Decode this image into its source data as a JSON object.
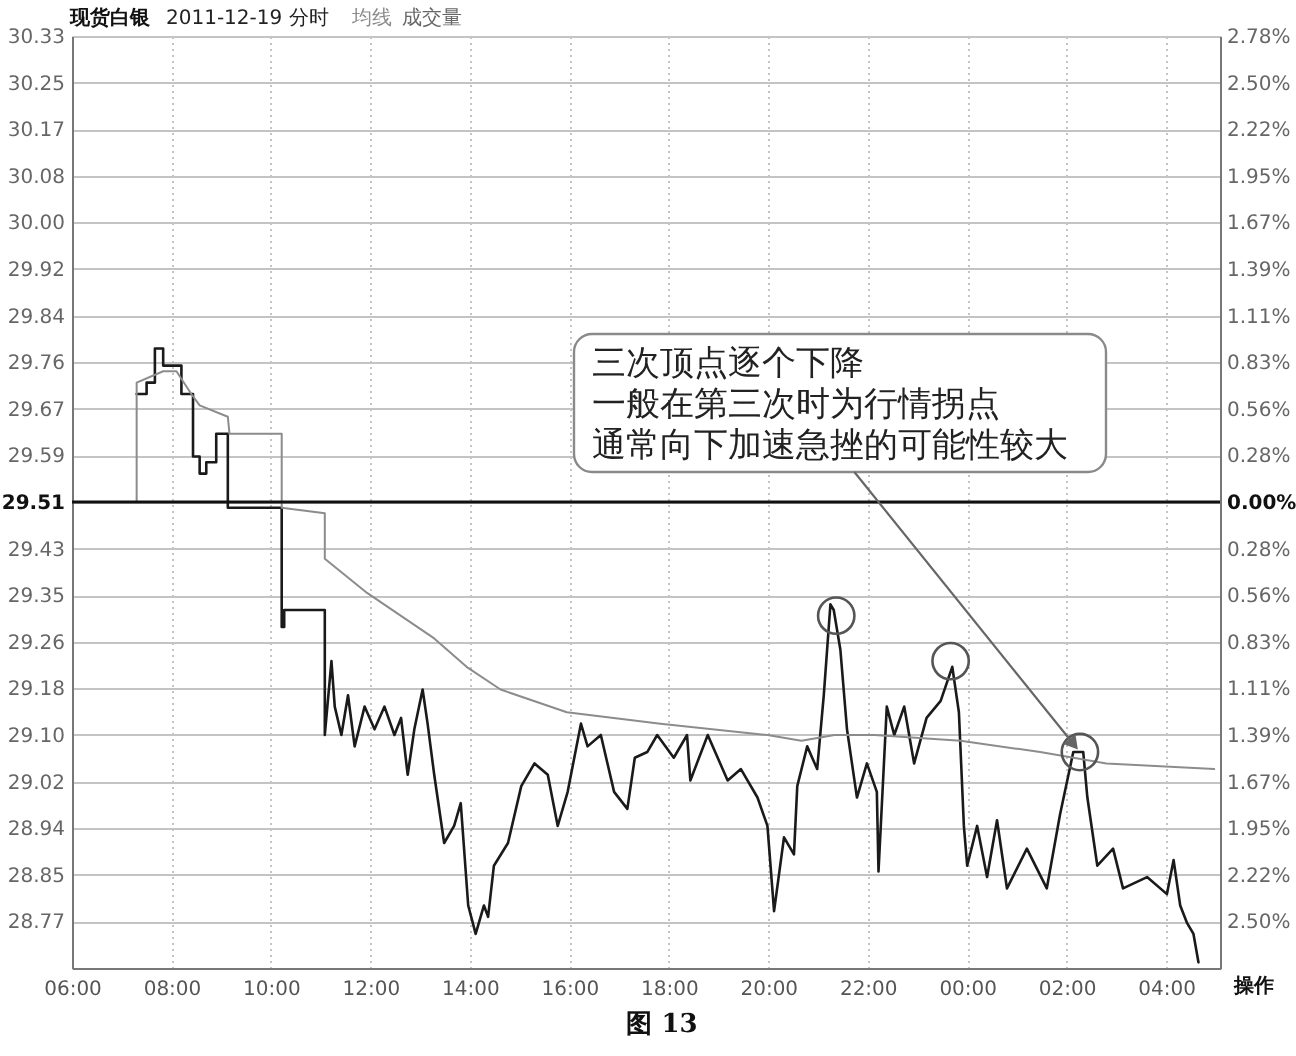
{
  "chart_data": {
    "type": "line",
    "title": "现货白银",
    "subtitle": "2011-12-19 分时",
    "xlim": [
      "2011-12-19T06:00",
      "2011-12-20T05:05"
    ],
    "xticks": [
      {
        "value": "2011-12-19T06:00",
        "label": "06:00"
      },
      {
        "value": "2011-12-19T08:00",
        "label": "08:00"
      },
      {
        "value": "2011-12-19T10:00",
        "label": "10:00"
      },
      {
        "value": "2011-12-19T12:00",
        "label": "12:00"
      },
      {
        "value": "2011-12-19T14:00",
        "label": "14:00"
      },
      {
        "value": "2011-12-19T16:00",
        "label": "16:00"
      },
      {
        "value": "2011-12-19T18:00",
        "label": "18:00"
      },
      {
        "value": "2011-12-19T20:00",
        "label": "20:00"
      },
      {
        "value": "2011-12-19T22:00",
        "label": "22:00"
      },
      {
        "value": "2011-12-20T00:00",
        "label": "00:00"
      },
      {
        "value": "2011-12-20T02:00",
        "label": "02:00"
      },
      {
        "value": "2011-12-20T04:00",
        "label": "04:00"
      }
    ],
    "ylim": [
      28.69,
      30.33
    ],
    "yticks": [
      30.33,
      {
        "value": 30.248,
        "label": "30.25"
      },
      {
        "value": 30.166,
        "label": "30.17"
      },
      {
        "value": 30.084,
        "label": "30.08"
      },
      {
        "value": 30.002,
        "label": "30.00"
      },
      {
        "value": 29.92,
        "label": "29.92"
      },
      {
        "value": 29.838,
        "label": "29.84"
      },
      {
        "value": 29.756,
        "label": "29.76"
      },
      {
        "value": 29.674,
        "label": "29.67"
      },
      {
        "value": 29.592,
        "label": "29.59"
      },
      29.51,
      {
        "value": 29.428,
        "label": "29.43"
      },
      {
        "value": 29.346,
        "label": "29.35"
      },
      {
        "value": 29.264,
        "label": "29.26"
      },
      {
        "value": 29.182,
        "label": "29.18"
      },
      {
        "value": 29.1,
        "label": "29.10"
      },
      {
        "value": 29.018,
        "label": "29.02"
      },
      {
        "value": 28.936,
        "label": "28.94"
      },
      {
        "value": 28.854,
        "label": "28.85"
      },
      {
        "value": 28.772,
        "label": "28.77"
      }
    ],
    "y2lim": [
      -2.78,
      2.78
    ],
    "y2ticks": [
      {
        "value": 2.78,
        "label": "2.78%"
      },
      {
        "value": 2.502,
        "label": "2.50%"
      },
      {
        "value": 2.224,
        "label": "2.22%"
      },
      {
        "value": 1.946,
        "label": "1.95%"
      },
      {
        "value": 1.668,
        "label": "1.67%"
      },
      {
        "value": 1.39,
        "label": "1.39%"
      },
      {
        "value": 1.112,
        "label": "1.11%"
      },
      {
        "value": 0.834,
        "label": "0.83%"
      },
      {
        "value": 0.556,
        "label": "0.56%"
      },
      {
        "value": 0.278,
        "label": "0.28%"
      },
      {
        "value": 0,
        "label": "0.00%"
      },
      {
        "value": -0.278,
        "label": "0.28%"
      },
      {
        "value": -0.556,
        "label": "0.56%"
      },
      {
        "value": -0.834,
        "label": "0.83%"
      },
      {
        "value": -1.112,
        "label": "1.11%"
      },
      {
        "value": -1.39,
        "label": "1.39%"
      },
      {
        "value": -1.668,
        "label": "1.67%"
      },
      {
        "value": -1.946,
        "label": "1.95%"
      },
      {
        "value": -2.224,
        "label": "2.22%"
      },
      {
        "value": -2.502,
        "label": "2.50%"
      }
    ],
    "grid": true,
    "legend": "top left",
    "ref_lines": [
      {
        "axis": "y2",
        "value": 0,
        "color": "#111111"
      }
    ],
    "series": [
      {
        "color": "#1a1a1a",
        "x": [
          "2011-12-19T07:18",
          "2011-12-19T07:30",
          "2011-12-19T07:30",
          "2011-12-19T07:40",
          "2011-12-19T07:40",
          "2011-12-19T07:50",
          "2011-12-19T07:50",
          "2011-12-19T08:12",
          "2011-12-19T08:12",
          "2011-12-19T08:26",
          "2011-12-19T08:26",
          "2011-12-19T08:34",
          "2011-12-19T08:34",
          "2011-12-19T08:42",
          "2011-12-19T08:42",
          "2011-12-19T08:54",
          "2011-12-19T08:54",
          "2011-12-19T09:08",
          "2011-12-19T09:08",
          "2011-12-19T10:13",
          "2011-12-19T10:13",
          "2011-12-19T10:16",
          "2011-12-19T10:16",
          "2011-12-19T11:05",
          "2011-12-19T11:05",
          "2011-12-19T11:13",
          "2011-12-19T11:17",
          "2011-12-19T11:25",
          "2011-12-19T11:33",
          "2011-12-19T11:41",
          "2011-12-19T11:53",
          "2011-12-19T12:05",
          "2011-12-19T12:17",
          "2011-12-19T12:29",
          "2011-12-19T12:37",
          "2011-12-19T12:45",
          "2011-12-19T12:53",
          "2011-12-19T13:03",
          "2011-12-19T13:09",
          "2011-12-19T13:17",
          "2011-12-19T13:29",
          "2011-12-19T13:41",
          "2011-12-19T13:49",
          "2011-12-19T13:58",
          "2011-12-19T14:07",
          "2011-12-19T14:17",
          "2011-12-19T14:22",
          "2011-12-19T14:29",
          "2011-12-19T14:46",
          "2011-12-19T15:02",
          "2011-12-19T15:18",
          "2011-12-19T15:34",
          "2011-12-19T15:46",
          "2011-12-19T15:58",
          "2011-12-19T16:14",
          "2011-12-19T16:22",
          "2011-12-19T16:38",
          "2011-12-19T16:54",
          "2011-12-19T17:10",
          "2011-12-19T17:19",
          "2011-12-19T17:34",
          "2011-12-19T17:46",
          "2011-12-19T18:06",
          "2011-12-19T18:22",
          "2011-12-19T18:26",
          "2011-12-19T18:47",
          "2011-12-19T19:11",
          "2011-12-19T19:27",
          "2011-12-19T19:47",
          "2011-12-19T19:59",
          "2011-12-19T20:07",
          "2011-12-19T20:19",
          "2011-12-19T20:31",
          "2011-12-19T20:35",
          "2011-12-19T20:47",
          "2011-12-19T20:59",
          "2011-12-19T21:07",
          "2011-12-19T21:15",
          "2011-12-19T21:19",
          "2011-12-19T21:27",
          "2011-12-19T21:35",
          "2011-12-19T21:47",
          "2011-12-19T21:59",
          "2011-12-19T22:11",
          "2011-12-19T22:13",
          "2011-12-19T22:23",
          "2011-12-19T22:32",
          "2011-12-19T22:44",
          "2011-12-19T22:56",
          "2011-12-19T23:11",
          "2011-12-19T23:28",
          "2011-12-19T23:42",
          "2011-12-19T23:50",
          "2011-12-19T23:56",
          "2011-12-20T00:00",
          "2011-12-20T00:12",
          "2011-12-20T00:24",
          "2011-12-20T00:36",
          "2011-12-20T00:48",
          "2011-12-20T01:12",
          "2011-12-20T01:36",
          "2011-12-20T01:52",
          "2011-12-20T02:08",
          "2011-12-20T02:20",
          "2011-12-20T02:25",
          "2011-12-20T02:37",
          "2011-12-20T02:56",
          "2011-12-20T03:08",
          "2011-12-20T03:37",
          "2011-12-20T04:01",
          "2011-12-20T04:09",
          "2011-12-20T04:17",
          "2011-12-20T04:25",
          "2011-12-20T04:33",
          "2011-12-20T04:39"
        ],
        "values": [
          29.7,
          29.7,
          29.72,
          29.72,
          29.78,
          29.78,
          29.75,
          29.75,
          29.7,
          29.7,
          29.59,
          29.59,
          29.56,
          29.56,
          29.58,
          29.58,
          29.63,
          29.63,
          29.5,
          29.5,
          29.29,
          29.29,
          29.32,
          29.32,
          29.1,
          29.23,
          29.15,
          29.1,
          29.17,
          29.08,
          29.15,
          29.11,
          29.15,
          29.1,
          29.13,
          29.03,
          29.11,
          29.18,
          29.12,
          29.03,
          28.91,
          28.94,
          28.98,
          28.8,
          28.75,
          28.8,
          28.78,
          28.87,
          28.91,
          29.01,
          29.05,
          29.03,
          28.94,
          29.0,
          29.12,
          29.08,
          29.1,
          29.0,
          28.97,
          29.06,
          29.07,
          29.1,
          29.06,
          29.1,
          29.02,
          29.1,
          29.02,
          29.04,
          28.99,
          28.94,
          28.79,
          28.92,
          28.89,
          29.01,
          29.08,
          29.04,
          29.17,
          29.33,
          29.32,
          29.25,
          29.11,
          28.99,
          29.05,
          29.0,
          28.86,
          29.15,
          29.1,
          29.15,
          29.05,
          29.13,
          29.16,
          29.22,
          29.14,
          28.94,
          28.87,
          28.94,
          28.85,
          28.95,
          28.83,
          28.9,
          28.83,
          28.96,
          29.07,
          29.07,
          28.99,
          28.87,
          28.9,
          28.83,
          28.85,
          28.82,
          28.88,
          28.8,
          28.77,
          28.75,
          28.7
        ]
      },
      {
        "name": "均线",
        "color": "#8c8c8c",
        "x": [
          "2011-12-19T07:18",
          "2011-12-19T07:18",
          "2011-12-19T07:50",
          "2011-12-19T08:06",
          "2011-12-19T08:24",
          "2011-12-19T08:34",
          "2011-12-19T09:08",
          "2011-12-19T09:10",
          "2011-12-19T10:13",
          "2011-12-19T10:13",
          "2011-12-19T11:05",
          "2011-12-19T11:05",
          "2011-12-19T11:56",
          "2011-12-19T13:17",
          "2011-12-19T13:56",
          "2011-12-19T14:37",
          "2011-12-19T15:57",
          "2011-12-19T17:50",
          "2011-12-19T19:59",
          "2011-12-19T20:40",
          "2011-12-19T21:20",
          "2011-12-19T22:08",
          "2011-12-19T23:52",
          "2011-12-20T01:28",
          "2011-12-20T02:48",
          "2011-12-20T04:58"
        ],
        "values": [
          29.51,
          29.72,
          29.74,
          29.74,
          29.7,
          29.68,
          29.66,
          29.63,
          29.63,
          29.5,
          29.49,
          29.41,
          29.35,
          29.27,
          29.22,
          29.18,
          29.14,
          29.12,
          29.1,
          29.09,
          29.1,
          29.1,
          29.09,
          29.07,
          29.05,
          29.04
        ]
      },
      {
        "type": "scatter",
        "marker": "circle",
        "color": "#555555",
        "x": [
          "2011-12-19T21:22",
          "2011-12-19T23:40",
          "2011-12-20T02:16"
        ],
        "values": [
          29.31,
          29.23,
          29.07
        ]
      }
    ],
    "annotations": [
      "三次顶点逐个下降",
      "一般在第三次时为行情拐点",
      {
        "text": "通常向下加速急挫的可能性较大",
        "x": "2011-12-20T02:16",
        "y": 29.07
      },
      "成交量",
      "操作",
      "图 13"
    ]
  }
}
